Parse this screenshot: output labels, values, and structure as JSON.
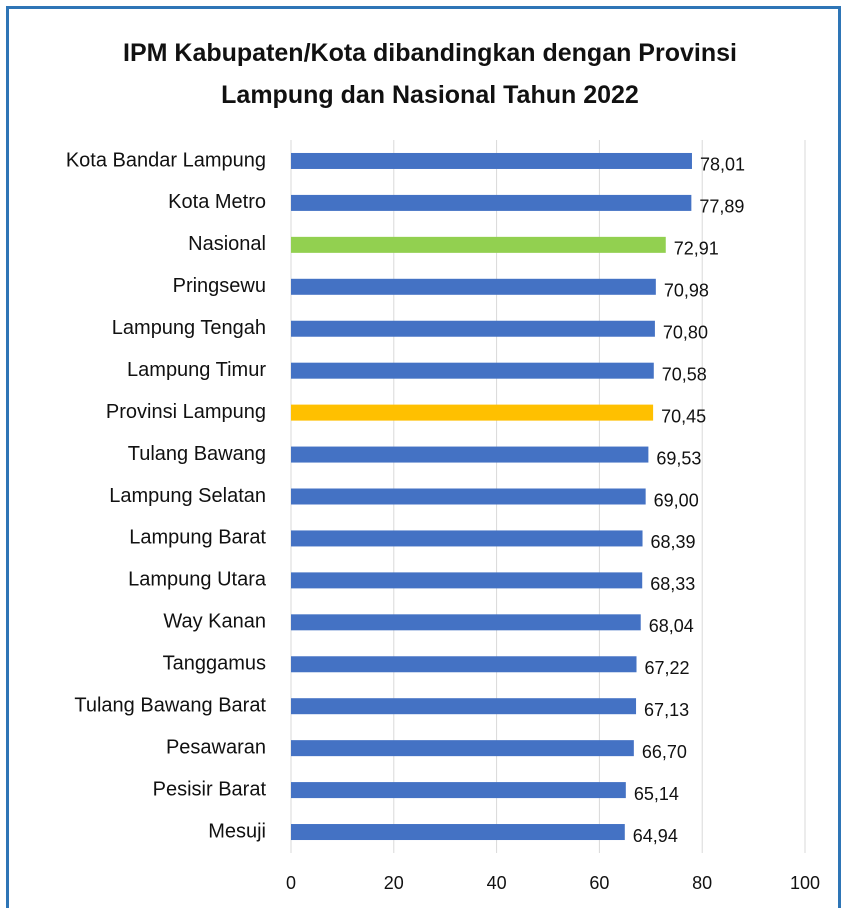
{
  "chart_data": {
    "type": "barh",
    "title": "IPM Kabupaten/Kota dibandingkan dengan Provinsi Lampung dan Nasional Tahun 2022",
    "categories": [
      "Kota Bandar Lampung",
      "Kota Metro",
      "Nasional",
      "Pringsewu",
      "Lampung Tengah",
      "Lampung Timur",
      "Provinsi Lampung",
      "Tulang Bawang",
      "Lampung Selatan",
      "Lampung Barat",
      "Lampung Utara",
      "Way Kanan",
      "Tanggamus",
      "Tulang Bawang Barat",
      "Pesawaran",
      "Pesisir Barat",
      "Mesuji"
    ],
    "values": [
      78.01,
      77.89,
      72.91,
      70.98,
      70.8,
      70.58,
      70.45,
      69.53,
      69.0,
      68.39,
      68.33,
      68.04,
      67.22,
      67.13,
      66.7,
      65.14,
      64.94
    ],
    "value_labels": [
      "78,01",
      "77,89",
      "72,91",
      "70,98",
      "70,80",
      "70,58",
      "70,45",
      "69,53",
      "69,00",
      "68,39",
      "68,33",
      "68,04",
      "67,22",
      "67,13",
      "66,70",
      "65,14",
      "64,94"
    ],
    "colors": [
      "#4472c4",
      "#4472c4",
      "#92d050",
      "#4472c4",
      "#4472c4",
      "#4472c4",
      "#ffc000",
      "#4472c4",
      "#4472c4",
      "#4472c4",
      "#4472c4",
      "#4472c4",
      "#4472c4",
      "#4472c4",
      "#4472c4",
      "#4472c4",
      "#4472c4"
    ],
    "xlim": [
      0,
      100
    ],
    "xticks": [
      0,
      20,
      40,
      60,
      80,
      100
    ],
    "grid": true
  }
}
